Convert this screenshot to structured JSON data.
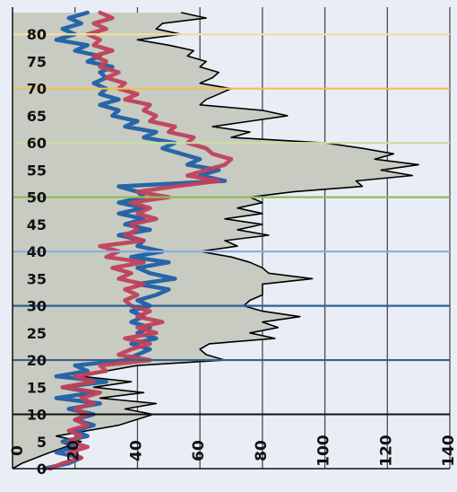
{
  "chart_data": {
    "type": "line",
    "orientation": "y-vertical-x-horizontal",
    "title": "",
    "xlabel": "",
    "ylabel": "",
    "xlim": [
      0,
      140
    ],
    "ylim": [
      0,
      85
    ],
    "x_ticks": [
      "0",
      "20",
      "40",
      "60",
      "80",
      "100",
      "120",
      "140"
    ],
    "y_ticks": [
      "0",
      "5",
      "10",
      "15",
      "20",
      "25",
      "30",
      "35",
      "40",
      "45",
      "50",
      "55",
      "60",
      "65",
      "70",
      "75",
      "80"
    ],
    "grid": {
      "vertical": true,
      "horizontal": "colored bands"
    },
    "reference_lines": [
      {
        "y": 10,
        "color": "#111111"
      },
      {
        "y": 20,
        "color": "#3c5f8c"
      },
      {
        "y": 30,
        "color": "#2f5f96"
      },
      {
        "y": 40,
        "color": "#8ab0d8"
      },
      {
        "y": 50,
        "color": "#8cbd5a"
      },
      {
        "y": 60,
        "color": "#c8dea0"
      },
      {
        "y": 70,
        "color": "#f0c050"
      },
      {
        "y": 80,
        "color": "#f2dfa0"
      }
    ],
    "series": [
      {
        "fill": "#c8cbc2",
        "color": "#000000",
        "points": [
          [
            0,
            0
          ],
          [
            3,
            1
          ],
          [
            12,
            3
          ],
          [
            22,
            5
          ],
          [
            14,
            6
          ],
          [
            34,
            8
          ],
          [
            45,
            10
          ],
          [
            36,
            11
          ],
          [
            46,
            12
          ],
          [
            28,
            13
          ],
          [
            42,
            14
          ],
          [
            26,
            15
          ],
          [
            38,
            16
          ],
          [
            22,
            17
          ],
          [
            30,
            18
          ],
          [
            40,
            19
          ],
          [
            68,
            20
          ],
          [
            62,
            21
          ],
          [
            60,
            22
          ],
          [
            63,
            23
          ],
          [
            84,
            24
          ],
          [
            76,
            25
          ],
          [
            85,
            26
          ],
          [
            80,
            27
          ],
          [
            92,
            28
          ],
          [
            80,
            29
          ],
          [
            74,
            30
          ],
          [
            76,
            31
          ],
          [
            80,
            32
          ],
          [
            80,
            34
          ],
          [
            96,
            35
          ],
          [
            82,
            36
          ],
          [
            80,
            37
          ],
          [
            76,
            38
          ],
          [
            70,
            39
          ],
          [
            60,
            40
          ],
          [
            72,
            41
          ],
          [
            68,
            42
          ],
          [
            82,
            43
          ],
          [
            72,
            44
          ],
          [
            80,
            45
          ],
          [
            68,
            46
          ],
          [
            80,
            47
          ],
          [
            72,
            48
          ],
          [
            80,
            49
          ],
          [
            76,
            50
          ],
          [
            90,
            51
          ],
          [
            112,
            52
          ],
          [
            110,
            53
          ],
          [
            128,
            54
          ],
          [
            118,
            55
          ],
          [
            130,
            56
          ],
          [
            116,
            57
          ],
          [
            122,
            58
          ],
          [
            112,
            59
          ],
          [
            100,
            60
          ],
          [
            70,
            61
          ],
          [
            76,
            62
          ],
          [
            64,
            63
          ],
          [
            76,
            64
          ],
          [
            88,
            65
          ],
          [
            80,
            66
          ],
          [
            60,
            67
          ],
          [
            62,
            68
          ],
          [
            66,
            69
          ],
          [
            70,
            70
          ],
          [
            60,
            71
          ],
          [
            64,
            72
          ],
          [
            66,
            73
          ],
          [
            60,
            74
          ],
          [
            62,
            75
          ],
          [
            56,
            76
          ],
          [
            58,
            77
          ],
          [
            50,
            78
          ],
          [
            40,
            79
          ],
          [
            54,
            80
          ],
          [
            46,
            81
          ],
          [
            48,
            82
          ],
          [
            62,
            83
          ],
          [
            54,
            84
          ]
        ]
      },
      {
        "color": "#1f5fa6",
        "points": [
          [
            10,
            0
          ],
          [
            18,
            1
          ],
          [
            22,
            2
          ],
          [
            14,
            3
          ],
          [
            20,
            4
          ],
          [
            16,
            5
          ],
          [
            24,
            6
          ],
          [
            20,
            7
          ],
          [
            26,
            8
          ],
          [
            20,
            9
          ],
          [
            26,
            10
          ],
          [
            18,
            11
          ],
          [
            28,
            12
          ],
          [
            14,
            13
          ],
          [
            26,
            14
          ],
          [
            16,
            15
          ],
          [
            30,
            16
          ],
          [
            14,
            17
          ],
          [
            24,
            18
          ],
          [
            20,
            19
          ],
          [
            36,
            20
          ],
          [
            40,
            21
          ],
          [
            44,
            22
          ],
          [
            38,
            23
          ],
          [
            46,
            24
          ],
          [
            40,
            25
          ],
          [
            44,
            26
          ],
          [
            38,
            27
          ],
          [
            42,
            28
          ],
          [
            38,
            29
          ],
          [
            44,
            30
          ],
          [
            40,
            31
          ],
          [
            46,
            32
          ],
          [
            50,
            33
          ],
          [
            40,
            34
          ],
          [
            52,
            35
          ],
          [
            44,
            36
          ],
          [
            40,
            37
          ],
          [
            50,
            38
          ],
          [
            38,
            39
          ],
          [
            48,
            40
          ],
          [
            40,
            41
          ],
          [
            42,
            42
          ],
          [
            34,
            43
          ],
          [
            44,
            44
          ],
          [
            36,
            45
          ],
          [
            42,
            46
          ],
          [
            34,
            47
          ],
          [
            42,
            48
          ],
          [
            34,
            49
          ],
          [
            42,
            50
          ],
          [
            40,
            51
          ],
          [
            34,
            52
          ],
          [
            68,
            53
          ],
          [
            60,
            54
          ],
          [
            66,
            55
          ],
          [
            56,
            56
          ],
          [
            60,
            57
          ],
          [
            54,
            58
          ],
          [
            48,
            59
          ],
          [
            52,
            60
          ],
          [
            42,
            61
          ],
          [
            46,
            62
          ],
          [
            36,
            63
          ],
          [
            40,
            64
          ],
          [
            32,
            65
          ],
          [
            34,
            66
          ],
          [
            28,
            67
          ],
          [
            34,
            68
          ],
          [
            28,
            69
          ],
          [
            30,
            70
          ],
          [
            26,
            71
          ],
          [
            30,
            72
          ],
          [
            28,
            73
          ],
          [
            32,
            74
          ],
          [
            24,
            75
          ],
          [
            28,
            76
          ],
          [
            20,
            77
          ],
          [
            24,
            78
          ],
          [
            14,
            79
          ],
          [
            20,
            80
          ],
          [
            16,
            81
          ],
          [
            22,
            82
          ],
          [
            18,
            83
          ],
          [
            24,
            84
          ]
        ]
      },
      {
        "color": "#c0405a",
        "points": [
          [
            12,
            0
          ],
          [
            16,
            1
          ],
          [
            22,
            2
          ],
          [
            18,
            3
          ],
          [
            24,
            4
          ],
          [
            18,
            5
          ],
          [
            22,
            6
          ],
          [
            18,
            7
          ],
          [
            24,
            8
          ],
          [
            20,
            9
          ],
          [
            24,
            10
          ],
          [
            20,
            11
          ],
          [
            26,
            12
          ],
          [
            22,
            13
          ],
          [
            28,
            14
          ],
          [
            16,
            15
          ],
          [
            26,
            16
          ],
          [
            20,
            17
          ],
          [
            30,
            18
          ],
          [
            28,
            19
          ],
          [
            44,
            20
          ],
          [
            34,
            21
          ],
          [
            38,
            22
          ],
          [
            44,
            23
          ],
          [
            36,
            24
          ],
          [
            46,
            25
          ],
          [
            40,
            26
          ],
          [
            48,
            27
          ],
          [
            40,
            28
          ],
          [
            44,
            29
          ],
          [
            38,
            30
          ],
          [
            36,
            31
          ],
          [
            40,
            32
          ],
          [
            36,
            33
          ],
          [
            42,
            34
          ],
          [
            34,
            35
          ],
          [
            38,
            36
          ],
          [
            32,
            37
          ],
          [
            42,
            38
          ],
          [
            30,
            39
          ],
          [
            34,
            40
          ],
          [
            28,
            41
          ],
          [
            42,
            42
          ],
          [
            36,
            43
          ],
          [
            40,
            44
          ],
          [
            38,
            45
          ],
          [
            46,
            46
          ],
          [
            40,
            47
          ],
          [
            44,
            48
          ],
          [
            38,
            49
          ],
          [
            50,
            50
          ],
          [
            40,
            51
          ],
          [
            52,
            52
          ],
          [
            66,
            53
          ],
          [
            56,
            54
          ],
          [
            62,
            55
          ],
          [
            68,
            56
          ],
          [
            70,
            57
          ],
          [
            64,
            58
          ],
          [
            62,
            59
          ],
          [
            56,
            60
          ],
          [
            58,
            61
          ],
          [
            50,
            62
          ],
          [
            52,
            63
          ],
          [
            44,
            64
          ],
          [
            46,
            65
          ],
          [
            42,
            66
          ],
          [
            44,
            67
          ],
          [
            36,
            68
          ],
          [
            40,
            69
          ],
          [
            34,
            70
          ],
          [
            36,
            71
          ],
          [
            30,
            72
          ],
          [
            34,
            73
          ],
          [
            28,
            74
          ],
          [
            30,
            75
          ],
          [
            26,
            76
          ],
          [
            32,
            77
          ],
          [
            26,
            78
          ],
          [
            28,
            79
          ],
          [
            24,
            80
          ],
          [
            30,
            81
          ],
          [
            26,
            82
          ],
          [
            32,
            83
          ],
          [
            28,
            84
          ]
        ]
      }
    ]
  }
}
